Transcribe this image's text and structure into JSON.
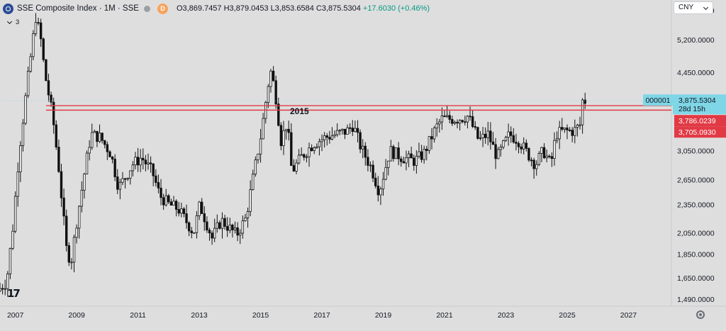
{
  "header": {
    "title": "SSE Composite Index · 1M · SSE",
    "badge": "D",
    "ohlc": "O3,869.7457 H3,879.0453 L3,853.6584 C3,875.5304",
    "change": "+17.6030 (+0.46%)"
  },
  "indicators_label": "3",
  "currency": "CNY",
  "icons": [
    "sse-logo-icon",
    "status-dot-icon",
    "chevron-down-icon",
    "caret-down-icon",
    "tradingview-logo-icon",
    "settings-icon"
  ],
  "colors": {
    "background": "#dedede",
    "candle": "#111111",
    "levels": "#e23a45",
    "last_price": "#7fd6e6",
    "up_text": "#089981"
  },
  "chart_data": {
    "type": "candlestick",
    "title": "SSE Composite Index",
    "interval": "1M",
    "scale": "log",
    "ylim": [
      1440,
      6300
    ],
    "xlim": [
      2006.5,
      2028.4
    ],
    "y_ticks": [
      "6,000.0000",
      "5,200.0000",
      "4,450.0000",
      "3,050.0000",
      "2,650.0000",
      "2,350.0000",
      "2,050.0000",
      "1,850.0000",
      "1,650.0000",
      "1,490.0000"
    ],
    "y_tick_values": [
      6000,
      5200,
      4450,
      3050,
      2650,
      2350,
      2050,
      1850,
      1650,
      1490
    ],
    "x_ticks": [
      "2007",
      "2009",
      "2011",
      "2013",
      "2015",
      "2017",
      "2019",
      "2021",
      "2023",
      "2025",
      "2027"
    ],
    "x_tick_values": [
      2007,
      2009,
      2011,
      2013,
      2015,
      2017,
      2019,
      2021,
      2023,
      2025,
      2027
    ],
    "annotation": "2015",
    "horizontal_lines": [
      {
        "value": 3786.0239,
        "label": "3,786.0239"
      },
      {
        "value": 3705.093,
        "label": "3,705.0930"
      }
    ],
    "last_price": {
      "value": 3875.5304,
      "label": "3,875.5304",
      "ticker": "000001",
      "countdown": "28d 15h"
    },
    "price_path": [
      [
        2006.5,
        1550
      ],
      [
        2006.8,
        1620
      ],
      [
        2007.0,
        2100
      ],
      [
        2007.2,
        3000
      ],
      [
        2007.45,
        4100
      ],
      [
        2007.75,
        5800
      ],
      [
        2007.9,
        5300
      ],
      [
        2008.05,
        4400
      ],
      [
        2008.3,
        3600
      ],
      [
        2008.5,
        2800
      ],
      [
        2008.75,
        1900
      ],
      [
        2008.9,
        1780
      ],
      [
        2009.1,
        2200
      ],
      [
        2009.4,
        2900
      ],
      [
        2009.55,
        3300
      ],
      [
        2009.85,
        3250
      ],
      [
        2010.2,
        3000
      ],
      [
        2010.45,
        2550
      ],
      [
        2010.7,
        2700
      ],
      [
        2010.9,
        2850
      ],
      [
        2011.2,
        2950
      ],
      [
        2011.55,
        2750
      ],
      [
        2011.8,
        2450
      ],
      [
        2012.1,
        2350
      ],
      [
        2012.4,
        2300
      ],
      [
        2012.9,
        2050
      ],
      [
        2013.1,
        2350
      ],
      [
        2013.5,
        2000
      ],
      [
        2013.8,
        2180
      ],
      [
        2014.3,
        2030
      ],
      [
        2014.6,
        2200
      ],
      [
        2014.85,
        2700
      ],
      [
        2015.1,
        3300
      ],
      [
        2015.4,
        4500
      ],
      [
        2015.55,
        4100
      ],
      [
        2015.75,
        3200
      ],
      [
        2015.95,
        3500
      ],
      [
        2016.1,
        2750
      ],
      [
        2016.4,
        2950
      ],
      [
        2016.8,
        3150
      ],
      [
        2017.2,
        3250
      ],
      [
        2017.9,
        3350
      ],
      [
        2018.1,
        3450
      ],
      [
        2018.35,
        3100
      ],
      [
        2018.7,
        2800
      ],
      [
        2018.95,
        2500
      ],
      [
        2019.3,
        3050
      ],
      [
        2019.7,
        2950
      ],
      [
        2020.1,
        2900
      ],
      [
        2020.4,
        3000
      ],
      [
        2020.8,
        3400
      ],
      [
        2021.0,
        3550
      ],
      [
        2021.5,
        3550
      ],
      [
        2021.85,
        3600
      ],
      [
        2022.2,
        3200
      ],
      [
        2022.5,
        3300
      ],
      [
        2022.8,
        2950
      ],
      [
        2023.2,
        3300
      ],
      [
        2023.5,
        3200
      ],
      [
        2023.8,
        3000
      ],
      [
        2024.05,
        2850
      ],
      [
        2024.3,
        3050
      ],
      [
        2024.55,
        2850
      ],
      [
        2024.72,
        3300
      ],
      [
        2024.95,
        3350
      ],
      [
        2025.3,
        3350
      ],
      [
        2025.5,
        3450
      ],
      [
        2025.58,
        3875.5304
      ]
    ]
  }
}
